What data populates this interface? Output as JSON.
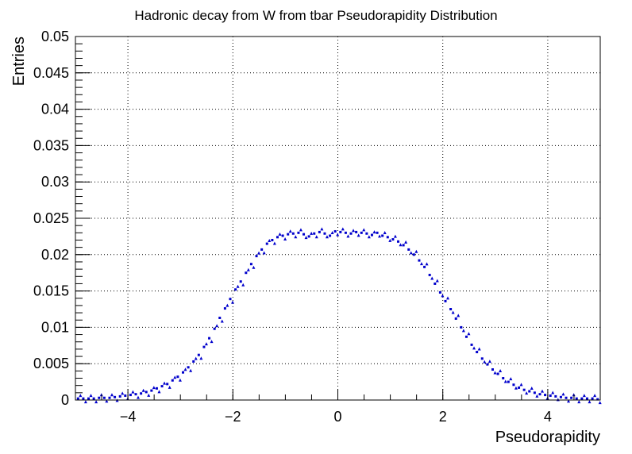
{
  "chart_data": {
    "type": "scatter",
    "title": "Hadronic decay from W from tbar Pseudorapidity Distribution",
    "xlabel": "Pseudorapidity",
    "ylabel": "Entries",
    "xlim": [
      -5,
      5
    ],
    "ylim": [
      0,
      0.05
    ],
    "x_ticks": [
      -4,
      -2,
      0,
      2,
      4
    ],
    "x_tick_labels": [
      "−4",
      "−2",
      "0",
      "2",
      "4"
    ],
    "y_ticks": [
      0,
      0.005,
      0.01,
      0.015,
      0.02,
      0.025,
      0.03,
      0.035,
      0.04,
      0.045,
      0.05
    ],
    "y_tick_labels": [
      "0",
      "0.005",
      "0.01",
      "0.015",
      "0.02",
      "0.025",
      "0.03",
      "0.035",
      "0.04",
      "0.045",
      "0.05"
    ],
    "grid": true,
    "marker_color": "#0000cc",
    "series": [
      {
        "x": [
          -4.95,
          -4.85,
          -4.75,
          -4.65,
          -4.55,
          -4.45,
          -4.35,
          -4.25,
          -4.15,
          -4.05,
          -3.95,
          -3.85,
          -3.75,
          -3.65,
          -3.55,
          -3.45,
          -3.35,
          -3.25,
          -3.15,
          -3.05,
          -2.95,
          -2.85,
          -2.75,
          -2.65,
          -2.55,
          -2.45,
          -2.35,
          -2.25,
          -2.15,
          -2.05,
          -1.95,
          -1.85,
          -1.75,
          -1.65,
          -1.55,
          -1.45,
          -1.35,
          -1.25,
          -1.15,
          -1.05,
          -0.95,
          -0.85,
          -0.75,
          -0.65,
          -0.55,
          -0.45,
          -0.35,
          -0.25,
          -0.15,
          -0.05,
          0.05,
          0.15,
          0.25,
          0.35,
          0.45,
          0.55,
          0.65,
          0.75,
          0.85,
          0.95,
          1.05,
          1.15,
          1.25,
          1.35,
          1.45,
          1.55,
          1.65,
          1.75,
          1.85,
          1.95,
          2.05,
          2.15,
          2.25,
          2.35,
          2.45,
          2.55,
          2.65,
          2.75,
          2.85,
          2.95,
          3.05,
          3.15,
          3.25,
          3.35,
          3.45,
          3.55,
          3.65,
          3.75,
          3.85,
          3.95,
          4.05,
          4.15,
          4.25,
          4.35,
          4.45,
          4.55,
          4.65,
          4.75,
          4.85,
          4.95
        ],
        "y": [
          0.0002,
          0.0002,
          0.0002,
          0.0002,
          0.0003,
          0.0003,
          0.0003,
          0.0004,
          0.0005,
          0.0006,
          0.0007,
          0.0008,
          0.0009,
          0.0011,
          0.0013,
          0.0016,
          0.0019,
          0.0022,
          0.0027,
          0.0032,
          0.0038,
          0.0045,
          0.0053,
          0.0062,
          0.0073,
          0.0085,
          0.0098,
          0.0113,
          0.0126,
          0.0139,
          0.0152,
          0.0163,
          0.0175,
          0.0187,
          0.0198,
          0.0207,
          0.0215,
          0.022,
          0.0224,
          0.0226,
          0.0228,
          0.0229,
          0.023,
          0.0228,
          0.0225,
          0.0229,
          0.0231,
          0.0229,
          0.0226,
          0.0232,
          0.0231,
          0.023,
          0.0229,
          0.0231,
          0.023,
          0.0229,
          0.0227,
          0.023,
          0.0226,
          0.0224,
          0.0221,
          0.0218,
          0.0213,
          0.0207,
          0.02,
          0.0192,
          0.0183,
          0.0172,
          0.016,
          0.0148,
          0.0136,
          0.0125,
          0.0112,
          0.01,
          0.0087,
          0.0076,
          0.0066,
          0.0057,
          0.0049,
          0.0042,
          0.0036,
          0.003,
          0.0025,
          0.0021,
          0.0017,
          0.0014,
          0.0012,
          0.001,
          0.0008,
          0.0007,
          0.0006,
          0.0005,
          0.0004,
          0.0003,
          0.0003,
          0.0002,
          0.0002,
          0.0002,
          0.0002,
          0.0001
        ]
      }
    ]
  }
}
